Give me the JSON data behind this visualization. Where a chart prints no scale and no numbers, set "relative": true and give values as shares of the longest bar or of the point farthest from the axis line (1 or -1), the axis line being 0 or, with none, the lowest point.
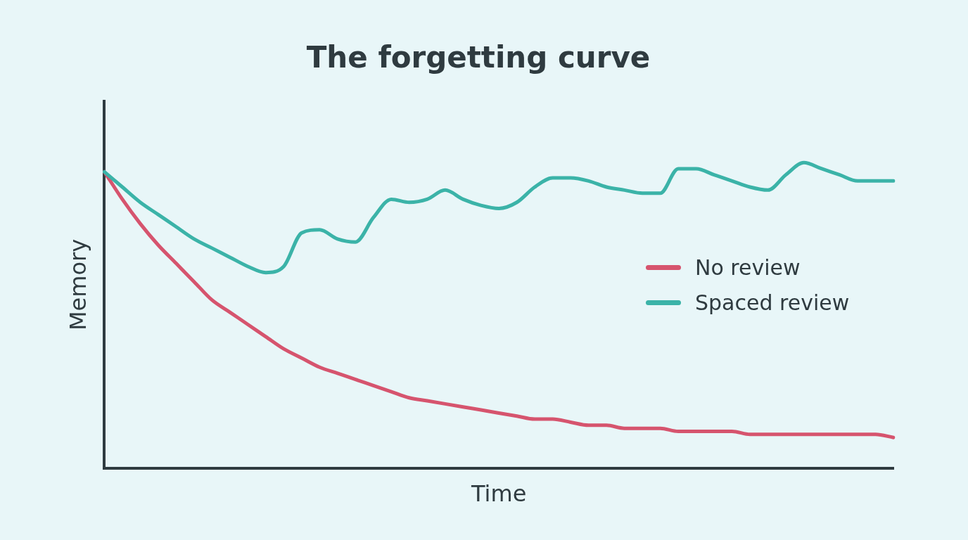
{
  "chart_data": {
    "type": "line",
    "title": "The forgetting curve",
    "xlabel": "Time",
    "ylabel": "Memory",
    "relative": true,
    "tick_labels": false,
    "grid": false,
    "legend": "right",
    "marker": "none",
    "line_style": "solid",
    "categories": [
      null,
      null,
      null,
      null,
      null,
      null,
      null,
      null,
      null,
      null,
      null,
      null,
      null,
      null,
      null,
      null,
      null,
      null,
      null,
      null,
      null,
      null,
      null,
      null,
      null,
      null,
      null,
      null,
      null,
      null,
      null,
      null,
      null,
      null,
      null,
      null,
      null,
      null,
      null,
      null,
      null,
      null,
      null,
      null,
      null
    ],
    "series": [
      {
        "name": "No review",
        "color": "#d6546e",
        "values": [
          0.97,
          0.88,
          0.8,
          0.73,
          0.67,
          0.61,
          0.55,
          0.51,
          0.47,
          0.43,
          0.39,
          0.36,
          0.33,
          0.31,
          0.29,
          0.27,
          0.25,
          0.23,
          0.22,
          0.21,
          0.2,
          0.19,
          0.18,
          0.17,
          0.16,
          0.16,
          0.15,
          0.14,
          0.14,
          0.13,
          0.13,
          0.13,
          0.12,
          0.12,
          0.12,
          0.12,
          0.11,
          0.11,
          0.11,
          0.11,
          0.11,
          0.11,
          0.11,
          0.11,
          0.1
        ]
      },
      {
        "name": "Spaced review",
        "color": "#3bb3a8",
        "values": [
          0.97,
          0.92,
          0.87,
          0.83,
          0.79,
          0.75,
          0.72,
          0.69,
          0.66,
          0.64,
          0.66,
          0.77,
          0.78,
          0.75,
          0.74,
          0.82,
          0.88,
          0.87,
          0.88,
          0.91,
          0.88,
          0.86,
          0.85,
          0.87,
          0.92,
          0.95,
          0.95,
          0.94,
          0.92,
          0.91,
          0.9,
          0.9,
          0.98,
          0.98,
          0.96,
          0.94,
          0.92,
          0.91,
          0.96,
          1.0,
          0.98,
          0.96,
          0.94,
          0.94,
          0.94
        ]
      }
    ]
  }
}
